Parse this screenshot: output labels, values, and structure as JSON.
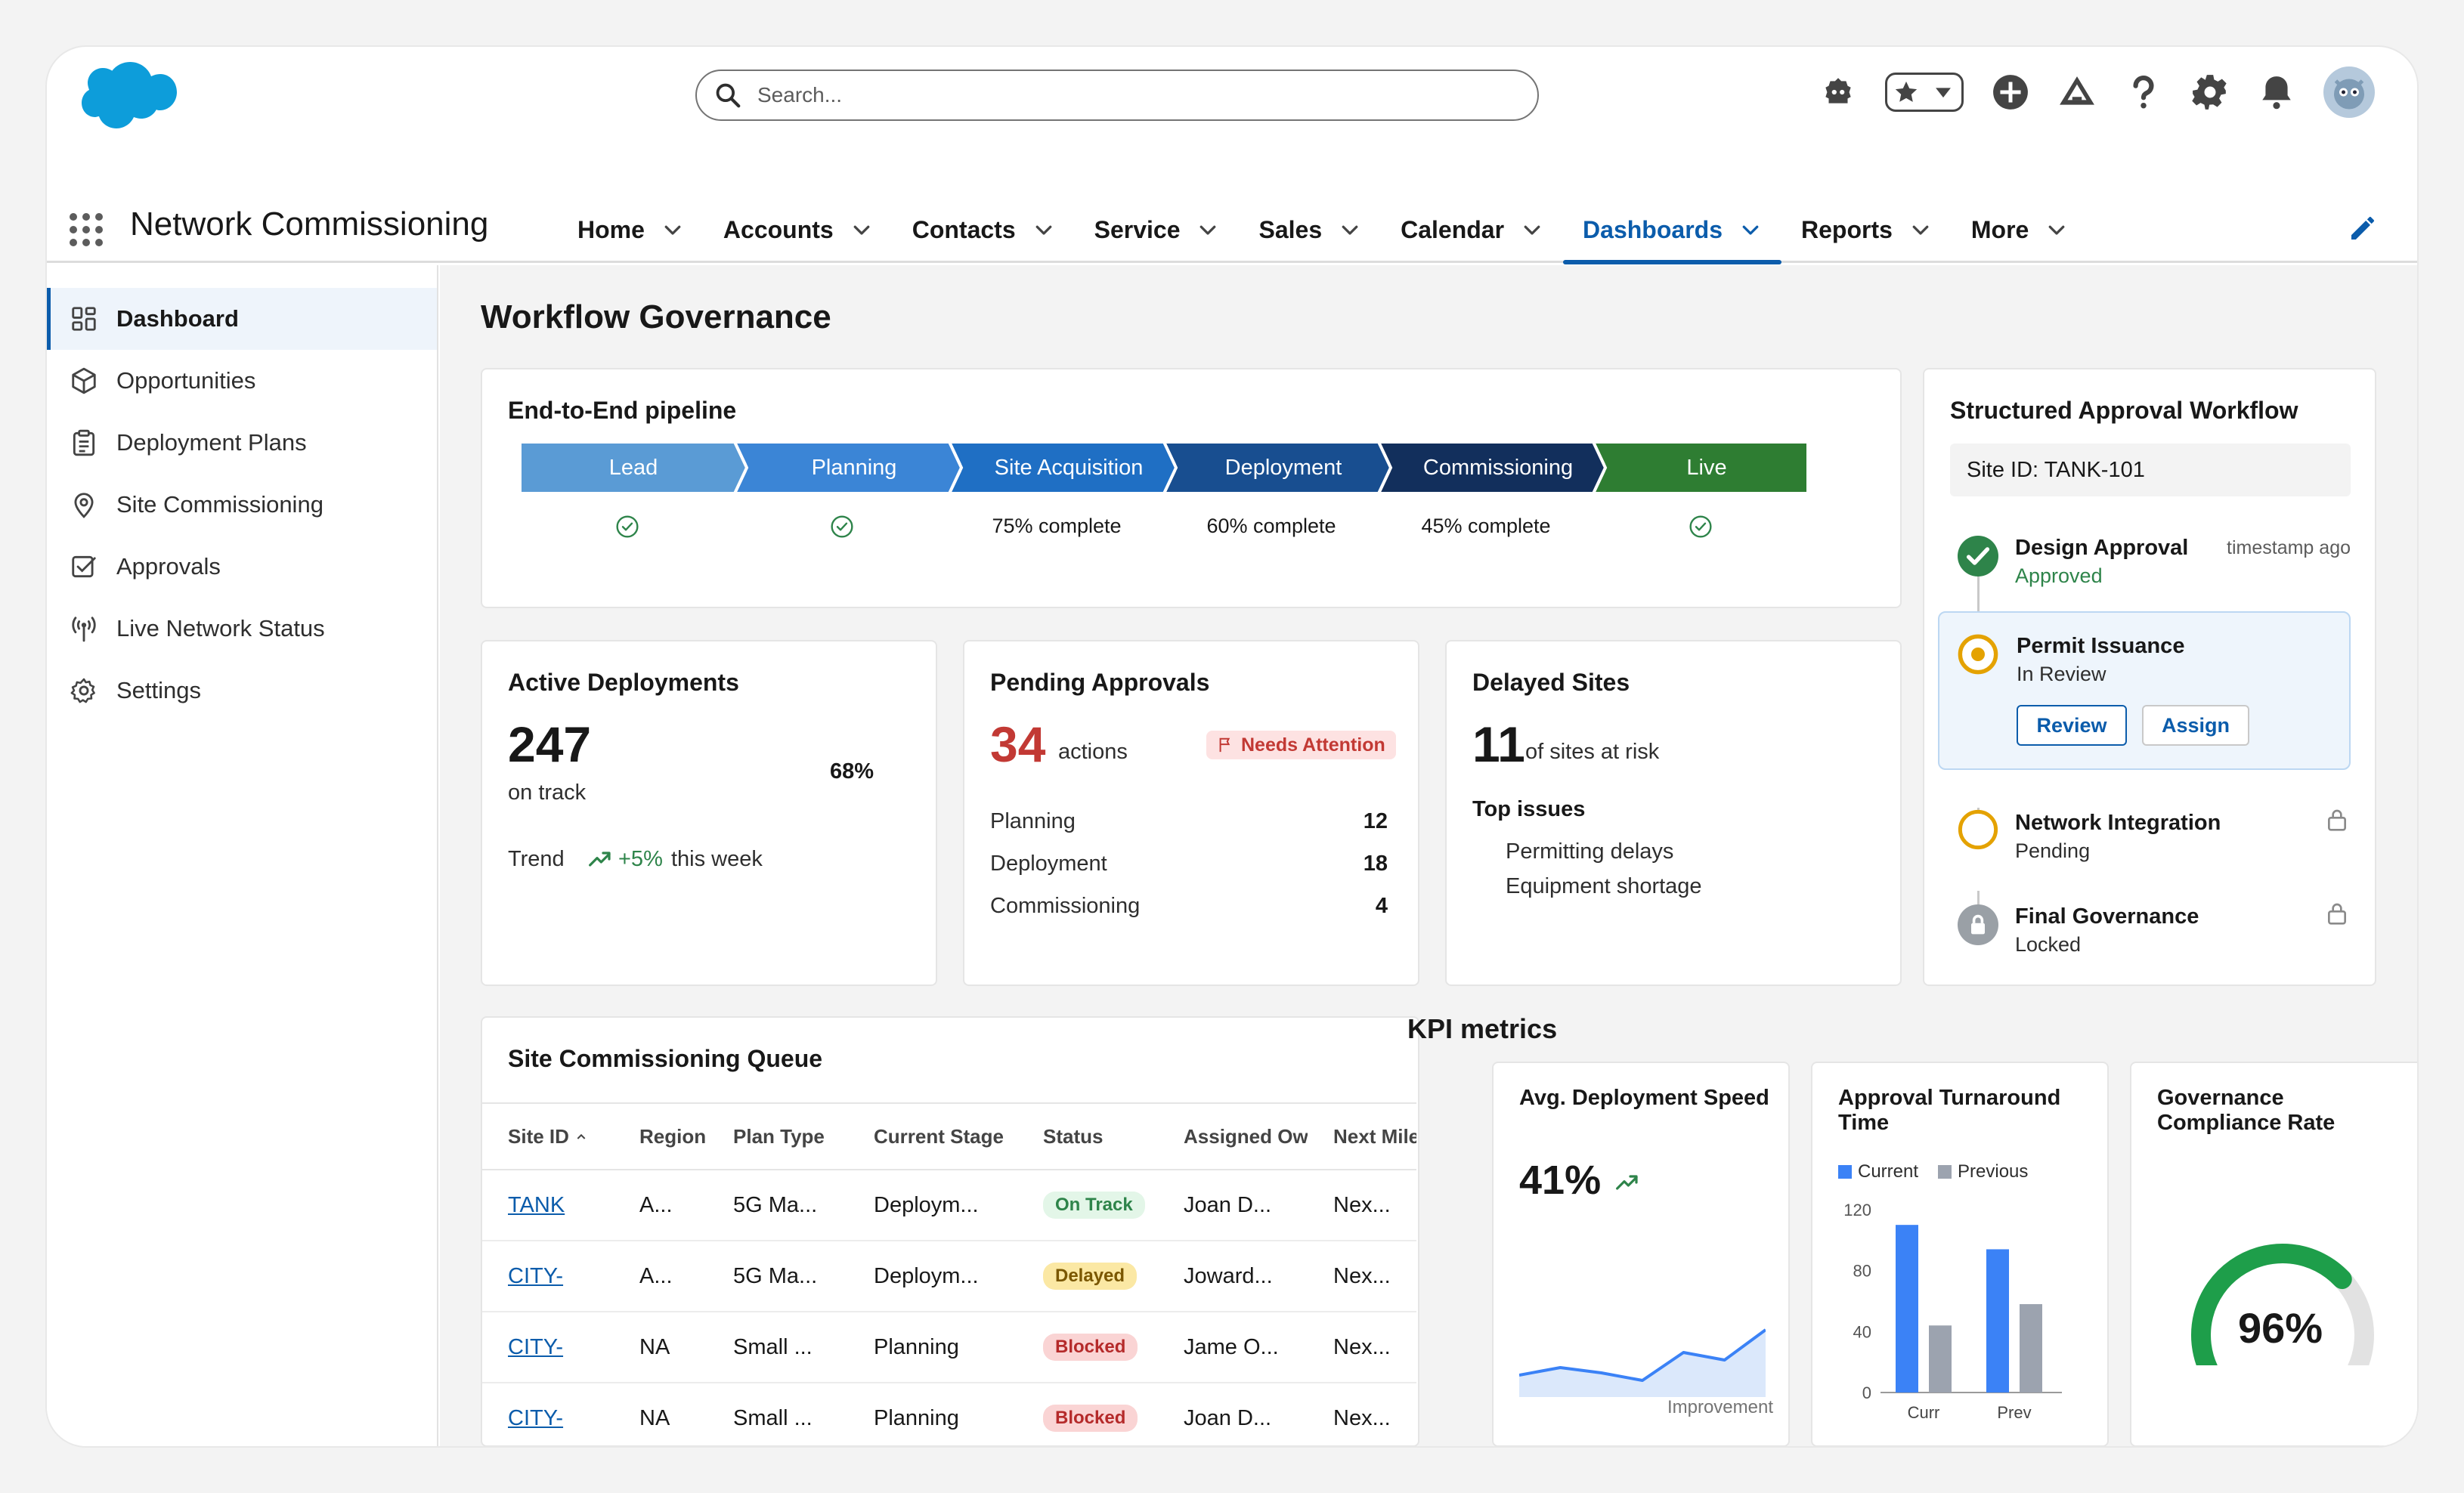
{
  "header": {
    "search_placeholder": "Search..."
  },
  "nav": {
    "app_name": "Network Commissioning",
    "items": [
      {
        "label": "Home"
      },
      {
        "label": "Accounts"
      },
      {
        "label": "Contacts"
      },
      {
        "label": "Service"
      },
      {
        "label": "Sales"
      },
      {
        "label": "Calendar"
      },
      {
        "label": "Dashboards",
        "active": true
      },
      {
        "label": "Reports"
      },
      {
        "label": "More"
      }
    ]
  },
  "sidebar": {
    "items": [
      {
        "label": "Dashboard",
        "icon": "dashboard-icon",
        "active": true
      },
      {
        "label": "Opportunities",
        "icon": "cube-icon"
      },
      {
        "label": "Deployment Plans",
        "icon": "clipboard-icon"
      },
      {
        "label": "Site Commissioning",
        "icon": "location-pin-icon"
      },
      {
        "label": "Approvals",
        "icon": "checkbox-icon"
      },
      {
        "label": "Live Network Status",
        "icon": "broadcast-icon"
      },
      {
        "label": "Settings",
        "icon": "gear-icon"
      }
    ]
  },
  "page": {
    "title": "Workflow Governance"
  },
  "pipeline": {
    "title": "End-to-End pipeline",
    "stages": [
      {
        "label": "Lead",
        "status": "",
        "color": "#5a9bd5",
        "done": true
      },
      {
        "label": "Planning",
        "status": "",
        "color": "#3b85d6",
        "done": true
      },
      {
        "label": "Site Acquisition",
        "status": "75% complete",
        "color": "#1f6fc4",
        "done": false
      },
      {
        "label": "Deployment",
        "status": "60% complete",
        "color": "#184e90",
        "done": false
      },
      {
        "label": "Commissioning",
        "status": "45% complete",
        "color": "#122f5c",
        "done": false
      },
      {
        "label": "Live",
        "status": "",
        "color": "#2e7d32",
        "done": true
      }
    ]
  },
  "active_deployments": {
    "title": "Active Deployments",
    "value": "247",
    "sub": "on track",
    "percent": "68%",
    "trend_label": "Trend",
    "trend_value": "+5%",
    "trend_suffix": "this week"
  },
  "pending_approvals": {
    "title": "Pending Approvals",
    "value": "34",
    "unit": "actions",
    "badge": "Needs Attention",
    "rows": [
      {
        "label": "Planning",
        "value": "12"
      },
      {
        "label": "Deployment",
        "value": "18"
      },
      {
        "label": "Commissioning",
        "value": "4"
      }
    ]
  },
  "delayed_sites": {
    "title": "Delayed Sites",
    "value": "11",
    "unit": "of sites at risk",
    "issues_title": "Top issues",
    "issues": [
      "Permitting delays",
      "Equipment shortage"
    ]
  },
  "approval_workflow": {
    "title": "Structured Approval Workflow",
    "site_id": "Site ID: TANK-101",
    "steps": [
      {
        "title": "Design Approval",
        "status": "Approved",
        "meta": "timestamp ago"
      },
      {
        "title": "Permit Issuance",
        "status": "In Review",
        "review_label": "Review",
        "assign_label": "Assign"
      },
      {
        "title": "Network Integration",
        "status": "Pending"
      },
      {
        "title": "Final Governance",
        "status": "Locked"
      }
    ]
  },
  "queue": {
    "title": "Site Commissioning Queue",
    "columns": [
      "Site ID",
      "Region",
      "Plan Type",
      "Current Stage",
      "Status",
      "Assigned Owner",
      "Next Mile"
    ],
    "rows": [
      {
        "site": "TANK",
        "region": "A...",
        "plan": "5G Ma...",
        "stage": "Deploym...",
        "status": "On Track",
        "owner": "Joan D...",
        "next": "Nex..."
      },
      {
        "site": "CITY-",
        "region": "A...",
        "plan": "5G Ma...",
        "stage": "Deploym...",
        "status": "Delayed",
        "owner": "Joward...",
        "next": "Nex..."
      },
      {
        "site": "CITY-",
        "region": "NA",
        "plan": "Small ...",
        "stage": "Planning",
        "status": "Blocked",
        "owner": "Jame O...",
        "next": "Nex..."
      },
      {
        "site": "CITY-",
        "region": "NA",
        "plan": "Small ...",
        "stage": "Planning",
        "status": "Blocked",
        "owner": "Joan D...",
        "next": "Nex..."
      }
    ]
  },
  "kpi": {
    "section_title": "KPI metrics",
    "speed": {
      "title": "Avg. Deployment Speed",
      "value": "41%",
      "footer": "Improvement",
      "sparkline": [
        0.25,
        0.35,
        0.28,
        0.18,
        0.55,
        0.45,
        0.85
      ]
    },
    "turnaround": {
      "title": "Approval Turnaround Time",
      "legend_current": "Current",
      "legend_previous": "Previous",
      "yticks": [
        "120",
        "80",
        "40",
        "0"
      ],
      "categories": [
        "Curr",
        "Prev"
      ]
    },
    "compliance": {
      "title": "Governance Compliance Rate",
      "value": "96%",
      "percent": 96
    }
  },
  "chart_data": {
    "type": "bar",
    "title": "Approval Turnaround Time",
    "categories": [
      "Curr",
      "Prev"
    ],
    "series": [
      {
        "name": "Current",
        "values": [
          110,
          94
        ],
        "color": "#3b82f6"
      },
      {
        "name": "Previous",
        "values": [
          44,
          58
        ],
        "color": "#9ca3af"
      }
    ],
    "ylim": [
      0,
      120
    ],
    "yticks": [
      0,
      40,
      80,
      120
    ],
    "legend": "top-left"
  }
}
